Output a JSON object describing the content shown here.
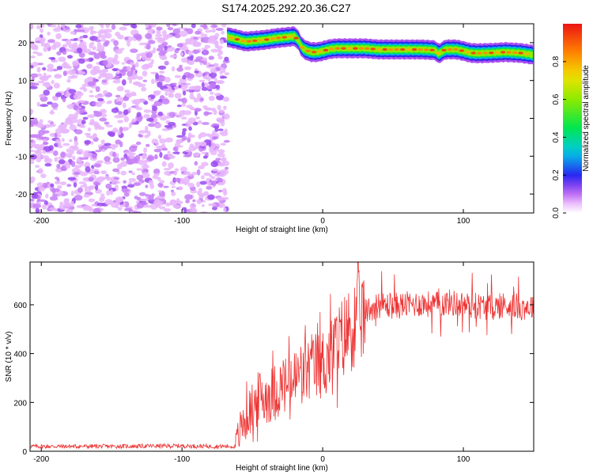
{
  "title": "S174.2025.292.20.36.C27",
  "chart_data": [
    {
      "type": "heatmap",
      "xlabel": "Height of straight line (km)",
      "ylabel": "Frequency (Hz)",
      "xlim": [
        -208,
        150
      ],
      "ylim": [
        -25,
        25
      ],
      "xticks": [
        -200,
        -100,
        0,
        100
      ],
      "yticks": [
        -20,
        -10,
        0,
        10,
        20
      ],
      "colorbar": {
        "label": "Normalized spectral amplitude",
        "range": [
          0,
          1
        ],
        "ticks": [
          0.0,
          0.2,
          0.4,
          0.6,
          0.8
        ],
        "tick_labels": [
          "0.0",
          "0.2",
          "0.4",
          "0.6",
          "0.8"
        ]
      },
      "noise_region": {
        "x_range": [
          -208,
          -68
        ],
        "f_range": [
          -25,
          25
        ],
        "amplitude_range": [
          0.02,
          0.15
        ]
      },
      "signal_ridge": {
        "x": [
          -68,
          -62,
          -55,
          -48,
          -40,
          -33,
          -25,
          -20,
          -17,
          -15,
          -12,
          -8,
          -4,
          0,
          5,
          10,
          20,
          30,
          40,
          50,
          60,
          70,
          80,
          82,
          84,
          86,
          88,
          95,
          100,
          105,
          110,
          120,
          130,
          140,
          150
        ],
        "frequency": [
          21.5,
          21.0,
          20.3,
          20.5,
          20.8,
          21.2,
          21.5,
          21.7,
          20.5,
          18.8,
          18.0,
          17.5,
          17.5,
          17.8,
          18.3,
          18.5,
          18.5,
          18.5,
          18.2,
          18.2,
          18.2,
          18.2,
          18.0,
          17.2,
          17.3,
          18.0,
          18.2,
          18.2,
          17.8,
          17.3,
          17.2,
          17.3,
          17.5,
          17.3,
          16.8
        ],
        "amplitude_peak": 0.95
      }
    },
    {
      "type": "line",
      "xlabel": "Height of straight line (km)",
      "ylabel": "SNR (10 * v/v)",
      "xlim": [
        -208,
        150
      ],
      "ylim": [
        0,
        775
      ],
      "xticks": [
        -200,
        -100,
        0,
        100
      ],
      "yticks": [
        0,
        200,
        400,
        600
      ],
      "series": [
        {
          "color": "#ee3333",
          "x": [
            -208,
            -150,
            -100,
            -80,
            -62,
            -58,
            -52,
            -45,
            -38,
            -30,
            -22,
            -15,
            -8,
            0,
            5,
            10,
            15,
            20,
            25,
            30,
            35,
            40,
            50,
            60,
            70,
            80,
            90,
            100,
            110,
            120,
            130,
            140,
            150
          ],
          "y": [
            20,
            20,
            22,
            20,
            20,
            100,
            160,
            220,
            230,
            260,
            280,
            320,
            340,
            360,
            400,
            430,
            470,
            510,
            540,
            570,
            590,
            600,
            595,
            600,
            605,
            600,
            610,
            600,
            595,
            590,
            600,
            590,
            595
          ]
        }
      ]
    }
  ]
}
